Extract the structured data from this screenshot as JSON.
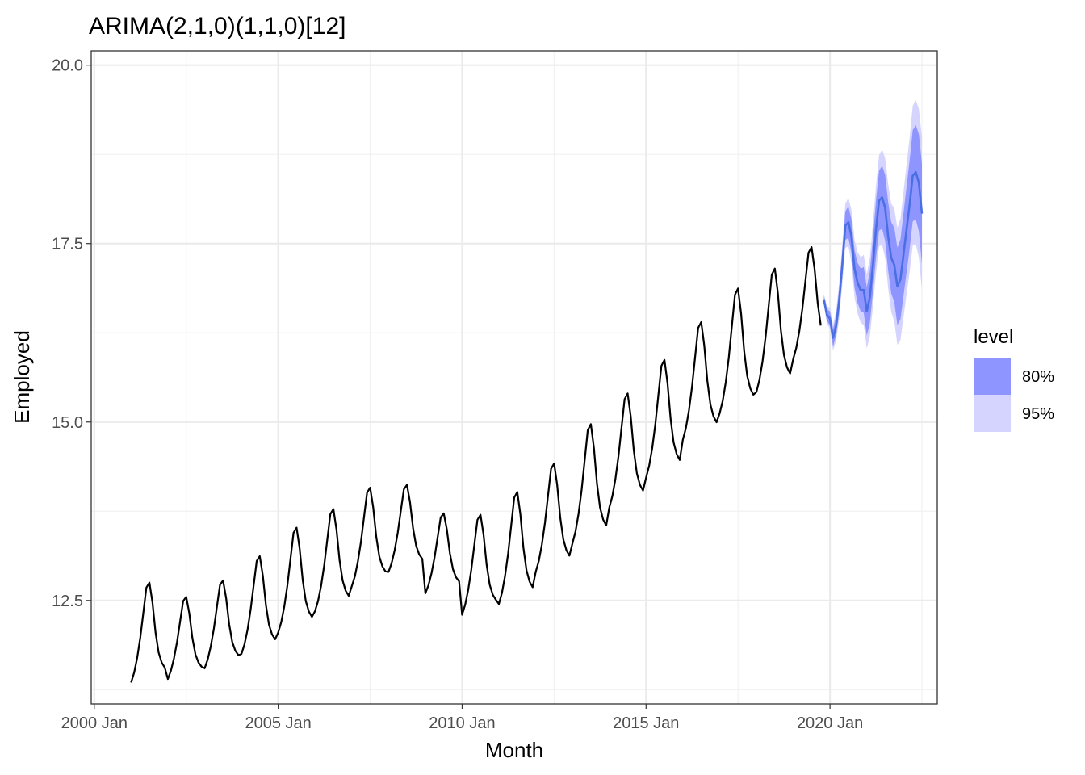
{
  "chart_data": {
    "type": "line",
    "title": "ARIMA(2,1,0)(1,1,0)[12]",
    "xlabel": "Month",
    "ylabel": "Employed",
    "x_ticks": [
      "2000 Jan",
      "2005 Jan",
      "2010 Jan",
      "2015 Jan",
      "2020 Jan"
    ],
    "y_ticks": [
      "12.5",
      "15.0",
      "17.5",
      "20.0"
    ],
    "xlim": [
      "1999-12",
      "2022-12"
    ],
    "ylim": [
      11.05,
      20.2
    ],
    "grid": true,
    "legend": {
      "title": "level",
      "position": "right",
      "items": [
        {
          "label": "80%",
          "color": "#8f95ff"
        },
        {
          "label": "95%",
          "color": "#d4d4ff"
        }
      ]
    },
    "series": [
      {
        "kind": "observed",
        "color": "#000000",
        "start": "2001-01",
        "frequency": "monthly",
        "seasonal_pattern": [
          0.0,
          0.1,
          0.25,
          0.45,
          0.7,
          0.95,
          1.0,
          0.8,
          0.5,
          0.3,
          0.2,
          0.15
        ],
        "annual": [
          {
            "year": 2001,
            "low": 11.35,
            "high": 12.75
          },
          {
            "year": 2002,
            "low": 11.4,
            "high": 12.55
          },
          {
            "year": 2003,
            "low": 11.55,
            "high": 12.78
          },
          {
            "year": 2004,
            "low": 11.75,
            "high": 13.12
          },
          {
            "year": 2005,
            "low": 12.05,
            "high": 13.52
          },
          {
            "year": 2006,
            "low": 12.35,
            "high": 13.78
          },
          {
            "year": 2007,
            "low": 12.7,
            "high": 14.08
          },
          {
            "year": 2008,
            "low": 12.9,
            "high": 14.12
          },
          {
            "year": 2009,
            "low": 12.6,
            "high": 13.72
          },
          {
            "year": 2010,
            "low": 12.3,
            "high": 13.7
          },
          {
            "year": 2011,
            "low": 12.45,
            "high": 14.02
          },
          {
            "year": 2012,
            "low": 12.9,
            "high": 14.42
          },
          {
            "year": 2013,
            "low": 13.3,
            "high": 14.97
          },
          {
            "year": 2014,
            "low": 13.8,
            "high": 15.4
          },
          {
            "year": 2015,
            "low": 14.22,
            "high": 15.87
          },
          {
            "year": 2016,
            "low": 14.75,
            "high": 16.4
          },
          {
            "year": 2017,
            "low": 15.12,
            "high": 16.87
          },
          {
            "year": 2018,
            "low": 15.42,
            "high": 17.15
          },
          {
            "year": 2019,
            "low": 15.88,
            "high": 17.45
          }
        ],
        "last": "2019-10"
      },
      {
        "kind": "forecast",
        "color": "#4a6fe3",
        "start": "2019-11",
        "frequency": "monthly",
        "mean": [
          16.72,
          16.5,
          16.45,
          16.18,
          16.35,
          16.7,
          17.2,
          17.75,
          17.8,
          17.6,
          17.15,
          16.95,
          16.85,
          16.85,
          16.55,
          16.75,
          17.2,
          17.7,
          18.1,
          18.15,
          18.0,
          17.6,
          17.3,
          17.2,
          16.9,
          17.0,
          17.35,
          17.7,
          18.05,
          18.45,
          18.5,
          18.35,
          17.92
        ],
        "pi80_halfwidth": [
          0.05,
          0.08,
          0.1,
          0.12,
          0.14,
          0.16,
          0.18,
          0.2,
          0.22,
          0.24,
          0.26,
          0.28,
          0.3,
          0.32,
          0.34,
          0.36,
          0.38,
          0.4,
          0.42,
          0.44,
          0.46,
          0.48,
          0.5,
          0.52,
          0.54,
          0.56,
          0.58,
          0.6,
          0.62,
          0.64,
          0.66,
          0.68,
          0.7
        ],
        "pi95_halfwidth": [
          0.08,
          0.12,
          0.15,
          0.18,
          0.21,
          0.25,
          0.28,
          0.31,
          0.34,
          0.37,
          0.4,
          0.43,
          0.46,
          0.49,
          0.52,
          0.55,
          0.58,
          0.61,
          0.64,
          0.67,
          0.7,
          0.73,
          0.76,
          0.79,
          0.82,
          0.85,
          0.88,
          0.91,
          0.94,
          0.98,
          1.01,
          1.04,
          1.07
        ]
      }
    ]
  }
}
